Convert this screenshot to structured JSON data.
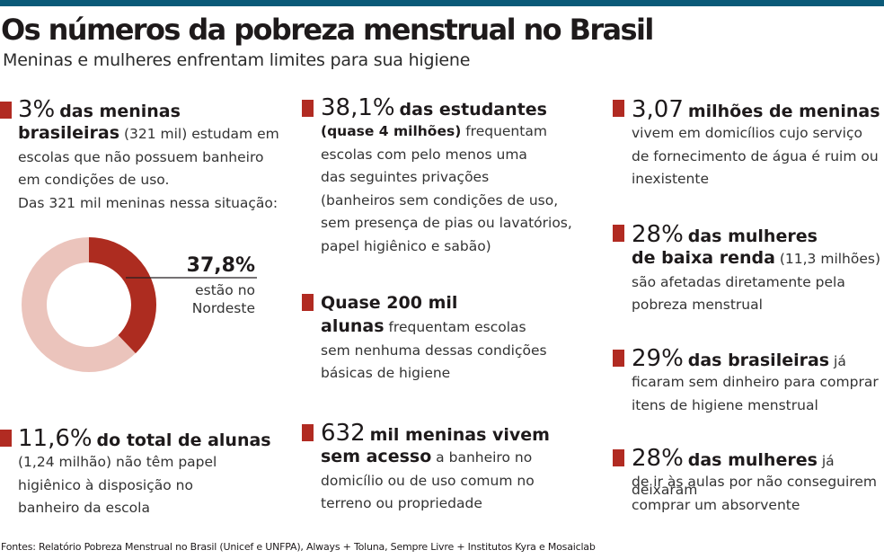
{
  "header": {
    "title": "Os números da pobreza menstrual no Brasil",
    "subtitle": "Meninas e mulheres enfrentam limites para sua higiene"
  },
  "stats": {
    "s1": {
      "value": "3%",
      "l1": "das meninas",
      "l2_bold": "brasileiras",
      "l2_rest": " (321 mil) estudam em",
      "l3": "escolas que não possuem banheiro",
      "l4": "em condições de uso.",
      "l5": "Das 321 mil meninas nessa situação:"
    },
    "donut": {
      "value": "37,8%",
      "value_pct": 37.8,
      "label_1": "estão no",
      "label_2": "Nordeste",
      "highlight_color": "#ad2c20",
      "rest_color": "#ebc4bc"
    },
    "s2": {
      "value": "11,6%",
      "l1": "do total de alunas",
      "l2": "(1,24 milhão) não têm papel",
      "l3": "higiênico à disposição no",
      "l4": "banheiro da escola"
    },
    "s3": {
      "value": "38,1%",
      "l1": "das estudantes",
      "l2_bold": "(quase 4 milhões)",
      "l2_rest": " frequentam",
      "l3": "escolas com pelo menos uma",
      "l4": "das seguintes privações",
      "l5": "(banheiros sem condições de uso,",
      "l6": "sem presença de pias ou lavatórios,",
      "l7": "papel higiênico e sabão)"
    },
    "s4": {
      "l1": "Quase 200 mil",
      "l2_bold": "alunas",
      "l2_rest": " frequentam escolas",
      "l3": "sem nenhuma dessas condições",
      "l4": "básicas de higiene"
    },
    "s5": {
      "value": "632",
      "l1": "mil meninas vivem",
      "l2_bold": "sem acesso",
      "l2_rest": " a banheiro no",
      "l3": "domicílio ou de uso comum no",
      "l4": "terreno ou propriedade"
    },
    "s6": {
      "value": "3,07",
      "l1": "milhões de meninas",
      "l2": "vivem em domicílios cujo serviço",
      "l3": "de fornecimento de água é ruim ou",
      "l4": "inexistente"
    },
    "s7": {
      "value": "28%",
      "l1": "das mulheres",
      "l2_bold": "de baixa renda",
      "l2_rest": " (11,3 milhões)",
      "l3": "são afetadas diretamente pela",
      "l4": "pobreza menstrual"
    },
    "s8": {
      "value": "29%",
      "l1": "das brasileiras",
      "l1_rest": " já",
      "l2": "ficaram sem dinheiro para comprar",
      "l3": "itens de higiene menstrual"
    },
    "s9": {
      "value": "28%",
      "l1": "das mulheres",
      "l1_rest": " já deixaram",
      "l2": "de ir às aulas por não conseguirem",
      "l3": "comprar um absorvente"
    }
  },
  "footer": {
    "sources": "Fontes: Relatório Pobreza Menstrual no Brasil (Unicef e UNFPA), Always + Toluna, Sempre Livre + Institutos Kyra e Mosaiclab"
  }
}
